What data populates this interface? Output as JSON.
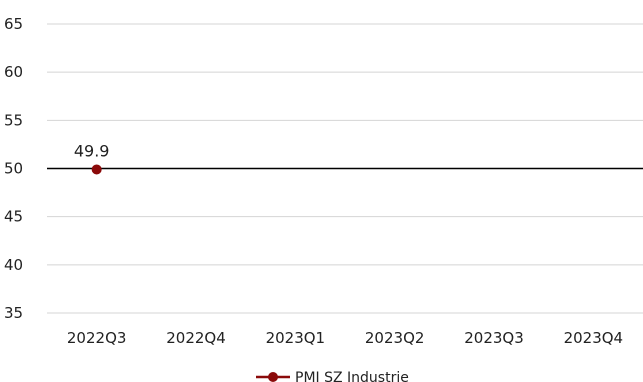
{
  "chart_data": {
    "type": "line",
    "categories": [
      "2022Q3",
      "2022Q4",
      "2023Q1",
      "2023Q2",
      "2023Q3",
      "2023Q4"
    ],
    "series": [
      {
        "name": "PMI SZ Industrie",
        "values": [
          49.9,
          null,
          null,
          null,
          null,
          null
        ],
        "color": "#8b0a0a"
      }
    ],
    "data_labels": [
      "49.9"
    ],
    "ylim": [
      35,
      65
    ],
    "yticks": [
      "35",
      "40",
      "45",
      "50",
      "55",
      "60",
      "65"
    ],
    "reference_line": 50,
    "grid": true,
    "legend_position": "bottom",
    "title": "",
    "xlabel": "",
    "ylabel": "",
    "colors": {
      "grid": "#d4d4d4",
      "reference": "#000000",
      "series": "#8b0a0a"
    }
  }
}
